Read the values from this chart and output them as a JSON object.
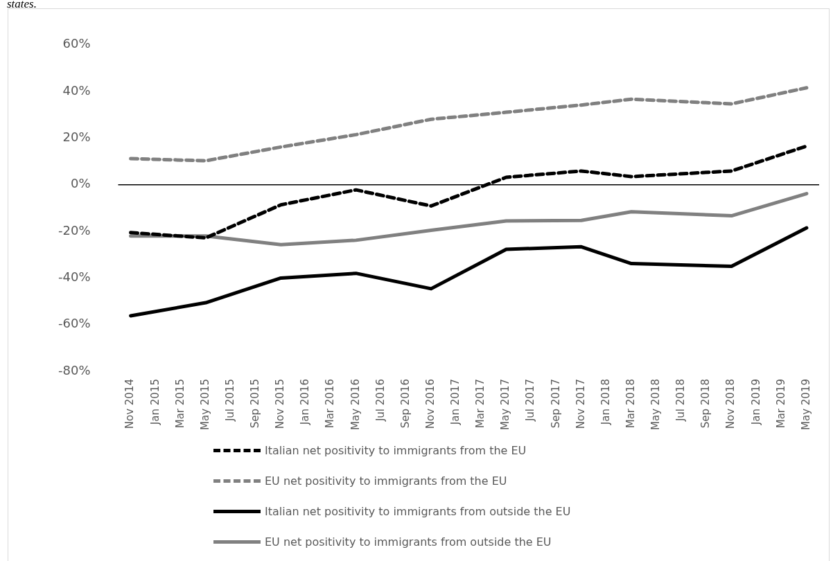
{
  "chart_data": {
    "type": "line",
    "annotations": [
      "states."
    ],
    "categories": [
      "Nov 2014",
      "Jan 2015",
      "Mar 2015",
      "May 2015",
      "Jul 2015",
      "Sep 2015",
      "Nov 2015",
      "Jan 2016",
      "Mar 2016",
      "May 2016",
      "Jul 2016",
      "Sep 2016",
      "Nov 2016",
      "Jan 2017",
      "Mar 2017",
      "May 2017",
      "Jul 2017",
      "Sep 2017",
      "Nov 2017",
      "Jan 2018",
      "Mar 2018",
      "May 2018",
      "Jul 2018",
      "Sep 2018",
      "Nov 2018",
      "Jan 2019",
      "Mar 2019",
      "May 2019"
    ],
    "series": [
      {
        "name": "Italian net positivity to immigrants from the EU",
        "color": "#000000",
        "line_style": "dashed",
        "values": [
          -20.5,
          null,
          null,
          -22.8,
          null,
          null,
          -8.6,
          null,
          null,
          -2.2,
          null,
          null,
          -9.1,
          null,
          null,
          3.2,
          null,
          null,
          5.9,
          null,
          3.5,
          null,
          null,
          null,
          5.9,
          null,
          null,
          16.6
        ]
      },
      {
        "name": "EU net positivity to immigrants from the EU",
        "color": "#808080",
        "line_style": "dashed",
        "values": [
          11.2,
          null,
          null,
          10.3,
          null,
          null,
          16.2,
          null,
          null,
          21.5,
          null,
          null,
          28.1,
          null,
          null,
          31.1,
          null,
          null,
          34.2,
          null,
          36.7,
          null,
          null,
          null,
          34.7,
          null,
          null,
          41.6
        ]
      },
      {
        "name": "Italian net positivity to immigrants from outside the EU",
        "color": "#000000",
        "line_style": "solid",
        "values": [
          -56.2,
          null,
          null,
          -50.6,
          null,
          null,
          -40,
          null,
          null,
          -38,
          null,
          null,
          -44.6,
          null,
          null,
          -27.7,
          null,
          null,
          -26.6,
          null,
          -33.8,
          null,
          null,
          null,
          -35,
          null,
          null,
          -18.5
        ]
      },
      {
        "name": "EU net positivity to immigrants from outside the EU",
        "color": "#808080",
        "line_style": "solid",
        "values": [
          -22,
          null,
          null,
          -22,
          null,
          null,
          -25.7,
          null,
          null,
          -23.8,
          null,
          null,
          -19.5,
          null,
          null,
          -15.5,
          null,
          null,
          -15.3,
          null,
          -11.6,
          null,
          null,
          null,
          -13.3,
          null,
          null,
          -3.8
        ]
      }
    ],
    "ylim": [
      -80,
      60
    ],
    "yticks": [
      {
        "value": -80,
        "label": "-80%"
      },
      {
        "value": -60,
        "label": "-60%"
      },
      {
        "value": -40,
        "label": "-40%"
      },
      {
        "value": -20,
        "label": "-20%"
      },
      {
        "value": 0,
        "label": "0%"
      },
      {
        "value": 20,
        "label": "20%"
      },
      {
        "value": 40,
        "label": "40%"
      },
      {
        "value": 60,
        "label": "60%"
      }
    ],
    "ref_lines": [
      {
        "axis": "y",
        "value": 0,
        "color": "#000000"
      }
    ],
    "grid": false,
    "legend": "bottom",
    "marker": "none"
  }
}
